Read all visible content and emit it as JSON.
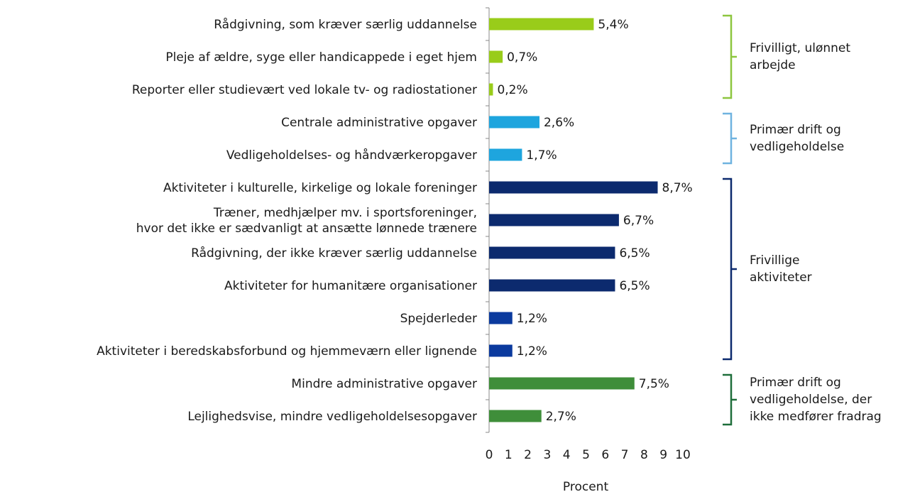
{
  "chart_data": {
    "type": "bar",
    "orientation": "horizontal",
    "categories": [
      "Rådgivning, som kræver særlig uddannelse",
      "Pleje af ældre, syge eller handicappede i eget hjem",
      "Reporter eller studievært ved lokale tv- og radiostationer",
      "Centrale administrative opgaver",
      "Vedligeholdelses- og håndværkeropgaver",
      "Aktiviteter i kulturelle, kirkelige og lokale foreninger",
      "Træner, medhjælper mv. i sportsforeninger,\nhvor det ikke er sædvanligt at ansætte lønnede trænere",
      "Rådgivning, der ikke kræver særlig uddannelse",
      "Aktiviteter for humanitære organisationer",
      "Spejderleder",
      "Aktiviteter i beredskabsforbund og hjemmeværn eller lignende",
      "Mindre administrative opgaver",
      "Lejlighedsvise, mindre vedligeholdelsesopgaver"
    ],
    "values": [
      5.4,
      0.7,
      0.2,
      2.6,
      1.7,
      8.7,
      6.7,
      6.5,
      6.5,
      1.2,
      1.2,
      7.5,
      2.7
    ],
    "value_labels": [
      "5,4%",
      "0,7%",
      "0,2%",
      "2,6%",
      "1,7%",
      "8,7%",
      "6,7%",
      "6,5%",
      "6,5%",
      "1,2%",
      "1,2%",
      "7,5%",
      "2,7%"
    ],
    "colors": [
      "#99cc1a",
      "#99cc1a",
      "#99cc1a",
      "#1ea5de",
      "#1ea5de",
      "#0c2a6e",
      "#0c2a6e",
      "#0c2a6e",
      "#0c2a6e",
      "#0b3a9e",
      "#0b3a9e",
      "#3f8e3a",
      "#3f8e3a"
    ],
    "groups": [
      {
        "label": "Frivilligt, ulønnet\narbejde",
        "color": "#8dc63f",
        "rows": [
          0,
          1,
          2
        ]
      },
      {
        "label": "Primær drift og\nvedligeholdelse",
        "color": "#6fb3e0",
        "rows": [
          3,
          4
        ]
      },
      {
        "label": "Frivillige\naktiviteter",
        "color": "#0c2a6e",
        "rows": [
          5,
          6,
          7,
          8,
          9,
          10
        ]
      },
      {
        "label": "Primær drift og\nvedligeholdelse, der\nikke medfører fradrag",
        "color": "#1e6e3a",
        "rows": [
          11,
          12
        ]
      }
    ],
    "x_label": "Procent",
    "xlim": [
      0,
      10
    ],
    "xticks": [
      0,
      1,
      2,
      3,
      4,
      5,
      6,
      7,
      8,
      9,
      10
    ]
  }
}
